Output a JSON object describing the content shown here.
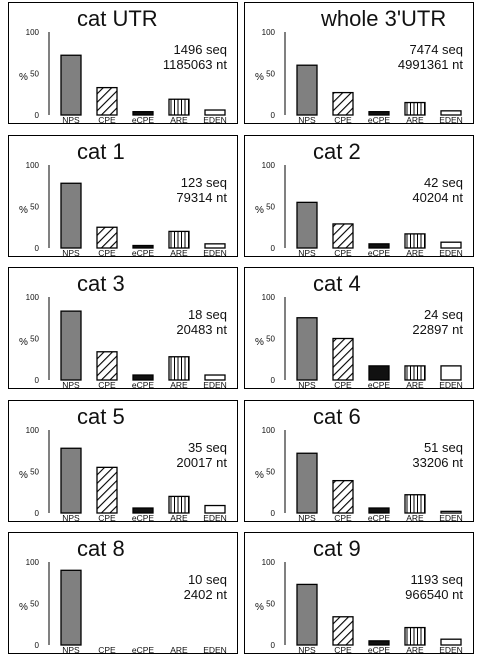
{
  "chart_data": [
    {
      "type": "bar",
      "title": "cat UTR",
      "stats": [
        "1496 seq",
        "1185063 nt"
      ],
      "ylabel": "%",
      "ylim": [
        0,
        100
      ],
      "yticks": [
        "0",
        "50",
        "100"
      ],
      "categories": [
        "NPS",
        "CPE",
        "eCPE",
        "ARE",
        "EDEN"
      ],
      "values": [
        72,
        33,
        4,
        19,
        6
      ]
    },
    {
      "type": "bar",
      "title": "whole 3'UTR",
      "stats": [
        "7474 seq",
        "4991361 nt"
      ],
      "ylabel": "%",
      "ylim": [
        0,
        100
      ],
      "yticks": [
        "0",
        "50",
        "100"
      ],
      "categories": [
        "NPS",
        "CPE",
        "eCPE",
        "ARE",
        "EDEN"
      ],
      "values": [
        60,
        27,
        4,
        15,
        5
      ]
    },
    {
      "type": "bar",
      "title": "cat 1",
      "stats": [
        "123 seq",
        "79314 nt"
      ],
      "ylabel": "%",
      "ylim": [
        0,
        100
      ],
      "yticks": [
        "0",
        "50",
        "100"
      ],
      "categories": [
        "NPS",
        "CPE",
        "eCPE",
        "ARE",
        "EDEN"
      ],
      "values": [
        78,
        25,
        3,
        20,
        5
      ]
    },
    {
      "type": "bar",
      "title": "cat 2",
      "stats": [
        "42 seq",
        "40204 nt"
      ],
      "ylabel": "%",
      "ylim": [
        0,
        100
      ],
      "yticks": [
        "0",
        "50",
        "100"
      ],
      "categories": [
        "NPS",
        "CPE",
        "eCPE",
        "ARE",
        "EDEN"
      ],
      "values": [
        55,
        29,
        5,
        17,
        7
      ]
    },
    {
      "type": "bar",
      "title": "cat 3",
      "stats": [
        "18 seq",
        "20483 nt"
      ],
      "ylabel": "%",
      "ylim": [
        0,
        100
      ],
      "yticks": [
        "0",
        "50",
        "100"
      ],
      "categories": [
        "NPS",
        "CPE",
        "eCPE",
        "ARE",
        "EDEN"
      ],
      "values": [
        83,
        34,
        6,
        28,
        6
      ]
    },
    {
      "type": "bar",
      "title": "cat 4",
      "stats": [
        "24 seq",
        "22897 nt"
      ],
      "ylabel": "%",
      "ylim": [
        0,
        100
      ],
      "yticks": [
        "0",
        "50",
        "100"
      ],
      "categories": [
        "NPS",
        "CPE",
        "eCPE",
        "ARE",
        "EDEN"
      ],
      "values": [
        75,
        50,
        17,
        17,
        17
      ]
    },
    {
      "type": "bar",
      "title": "cat 5",
      "stats": [
        "35 seq",
        "20017 nt"
      ],
      "ylabel": "%",
      "ylim": [
        0,
        100
      ],
      "yticks": [
        "0",
        "50",
        "100"
      ],
      "categories": [
        "NPS",
        "CPE",
        "eCPE",
        "ARE",
        "EDEN"
      ],
      "values": [
        78,
        55,
        6,
        20,
        9
      ]
    },
    {
      "type": "bar",
      "title": "cat 6",
      "stats": [
        "51 seq",
        "33206 nt"
      ],
      "ylabel": "%",
      "ylim": [
        0,
        100
      ],
      "yticks": [
        "0",
        "50",
        "100"
      ],
      "categories": [
        "NPS",
        "CPE",
        "eCPE",
        "ARE",
        "EDEN"
      ],
      "values": [
        72,
        39,
        6,
        22,
        2
      ]
    },
    {
      "type": "bar",
      "title": "cat 8",
      "stats": [
        "10 seq",
        "2402 nt"
      ],
      "ylabel": "%",
      "ylim": [
        0,
        100
      ],
      "yticks": [
        "0",
        "50",
        "100"
      ],
      "categories": [
        "NPS",
        "CPE",
        "eCPE",
        "ARE",
        "EDEN"
      ],
      "values": [
        90,
        0,
        0,
        0,
        0
      ]
    },
    {
      "type": "bar",
      "title": "cat 9",
      "stats": [
        "1193 seq",
        "966540 nt"
      ],
      "ylabel": "%",
      "ylim": [
        0,
        100
      ],
      "yticks": [
        "0",
        "50",
        "100"
      ],
      "categories": [
        "NPS",
        "CPE",
        "eCPE",
        "ARE",
        "EDEN"
      ],
      "values": [
        73,
        34,
        5,
        21,
        7
      ]
    }
  ],
  "styles": {
    "bar_fills": [
      "solid-gray",
      "diagonal-stripes",
      "solid-black",
      "vertical-stripes",
      "white"
    ],
    "colors": {
      "nps": "#808080",
      "ecpe": "#111111",
      "outline": "#000000",
      "background": "#ffffff"
    }
  }
}
